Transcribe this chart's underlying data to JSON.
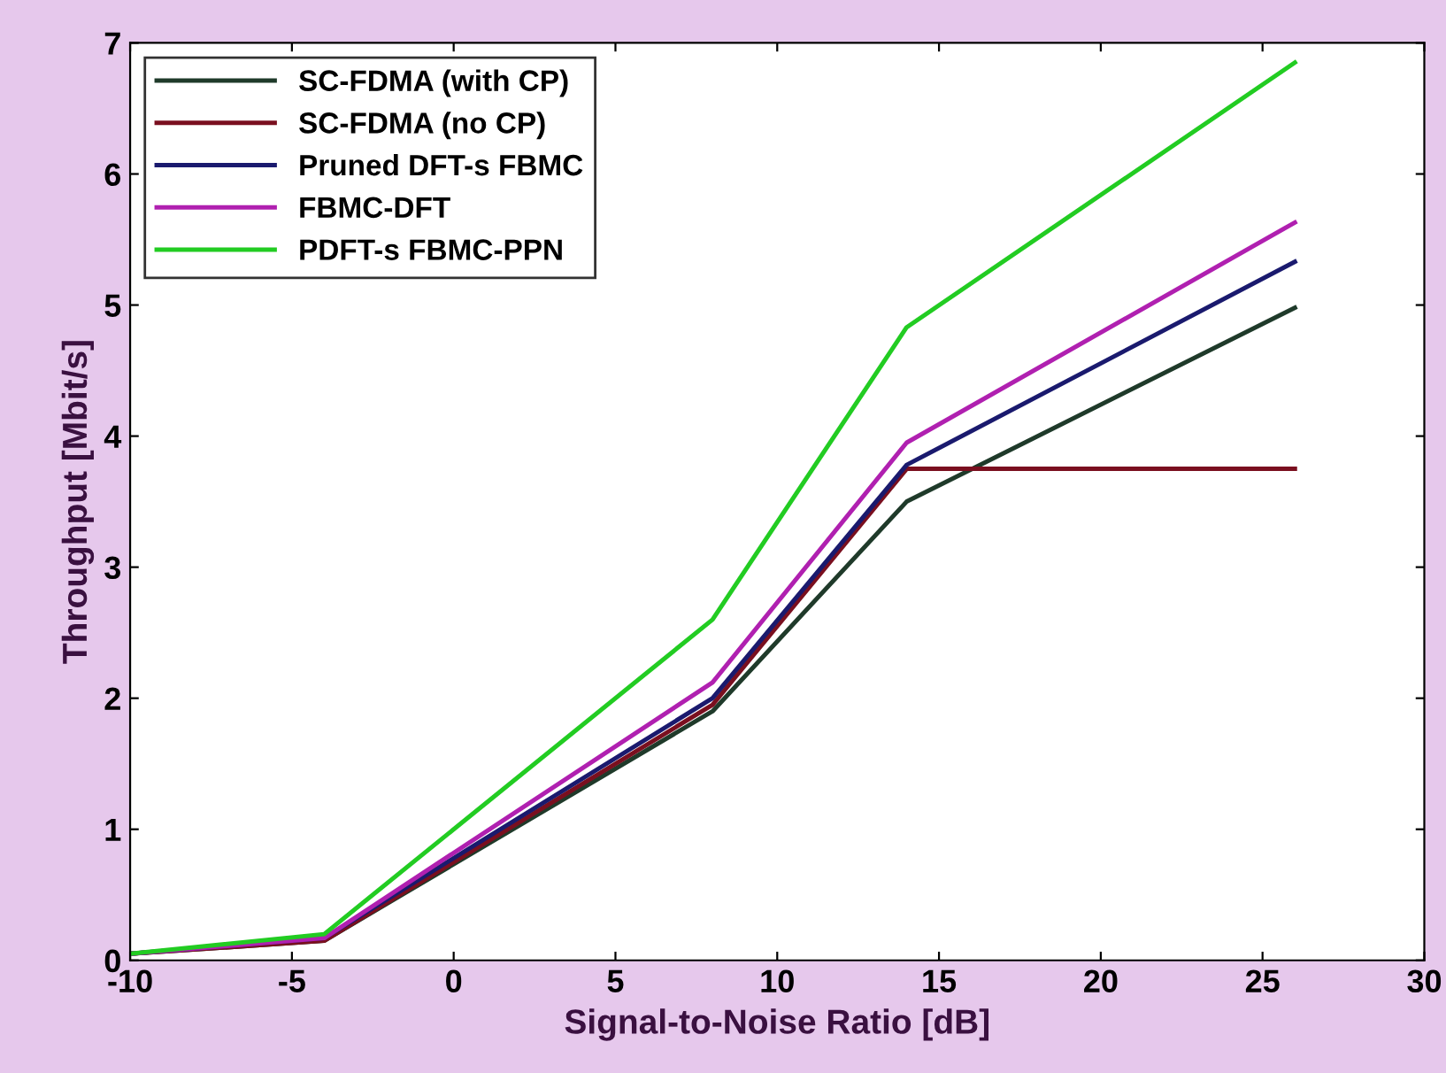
{
  "chart_data": {
    "type": "line",
    "xlabel": "Signal-to-Noise Ratio [dB]",
    "ylabel": "Throughput [Mbit/s]",
    "x": [
      -10,
      -4,
      8,
      14,
      26
    ],
    "series": [
      {
        "name": "SC-FDMA (with CP)",
        "color": "#1f3a2a",
        "values": [
          0.05,
          0.15,
          1.9,
          3.5,
          4.98
        ]
      },
      {
        "name": "SC-FDMA (no CP)",
        "color": "#7a0f1f",
        "values": [
          0.05,
          0.15,
          1.95,
          3.75,
          3.75
        ]
      },
      {
        "name": "Pruned DFT-s FBMC",
        "color": "#1a1a6e",
        "values": [
          0.05,
          0.17,
          2.0,
          3.78,
          5.33
        ]
      },
      {
        "name": "FBMC-DFT",
        "color": "#b020b0",
        "values": [
          0.05,
          0.17,
          2.12,
          3.95,
          5.63
        ]
      },
      {
        "name": "PDFT-s FBMC-PPN",
        "color": "#22cc22",
        "values": [
          0.05,
          0.2,
          2.6,
          4.83,
          6.85
        ]
      }
    ],
    "xlim": [
      -10,
      30
    ],
    "xticks": [
      -10,
      -5,
      0,
      5,
      10,
      15,
      20,
      25,
      30
    ],
    "ylim": [
      0,
      7
    ],
    "yticks": [
      0,
      1,
      2,
      3,
      4,
      5,
      6,
      7
    ],
    "grid": false,
    "legend": "top left",
    "marker": "none",
    "line_style": "solid"
  }
}
